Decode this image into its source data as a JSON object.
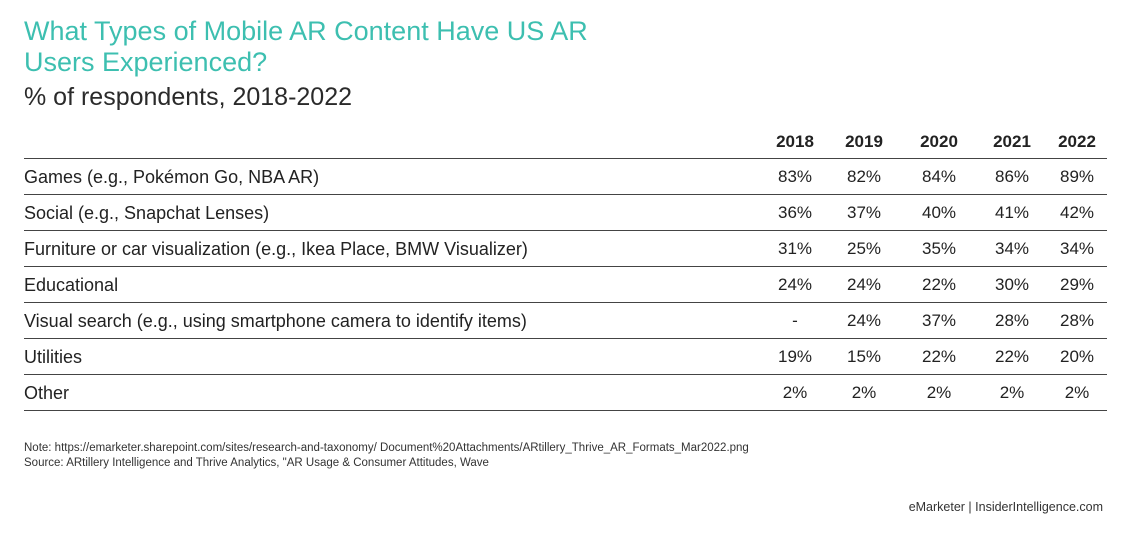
{
  "chart_data": {
    "type": "table",
    "title": "What Types of Mobile AR Content Have US AR Users Experienced?",
    "subtitle": "% of respondents, 2018-2022",
    "columns": [
      "2018",
      "2019",
      "2020",
      "2021",
      "2022"
    ],
    "rows": [
      {
        "label": "Games (e.g., Pokémon Go, NBA AR)",
        "values": [
          "83%",
          "82%",
          "84%",
          "86%",
          "89%"
        ]
      },
      {
        "label": "Social (e.g., Snapchat Lenses)",
        "values": [
          "36%",
          "37%",
          "40%",
          "41%",
          "42%"
        ]
      },
      {
        "label": "Furniture or car visualization (e.g., Ikea Place, BMW Visualizer)",
        "values": [
          "31%",
          "25%",
          "35%",
          "34%",
          "34%"
        ]
      },
      {
        "label": "Educational",
        "values": [
          "24%",
          "24%",
          "22%",
          "30%",
          "29%"
        ]
      },
      {
        "label": "Visual search (e.g., using smartphone camera to identify items)",
        "values": [
          "-",
          "24%",
          "37%",
          "28%",
          "28%"
        ]
      },
      {
        "label": "Utilities",
        "values": [
          "19%",
          "15%",
          "22%",
          "22%",
          "20%"
        ]
      },
      {
        "label": "Other",
        "values": [
          "2%",
          "2%",
          "2%",
          "2%",
          "2%"
        ]
      }
    ]
  },
  "note": "Note: https://emarketer.sharepoint.com/sites/research-and-taxonomy/ Document%20Attachments/ARtillery_Thrive_AR_Formats_Mar2022.png",
  "source": "Source: ARtillery Intelligence and Thrive Analytics, \"AR Usage & Consumer Attitudes, Wave",
  "footer": "eMarketer | InsiderIntelligence.com",
  "colors": {
    "title": "#3dbfb0",
    "text": "#222222",
    "rule": "#444444"
  }
}
